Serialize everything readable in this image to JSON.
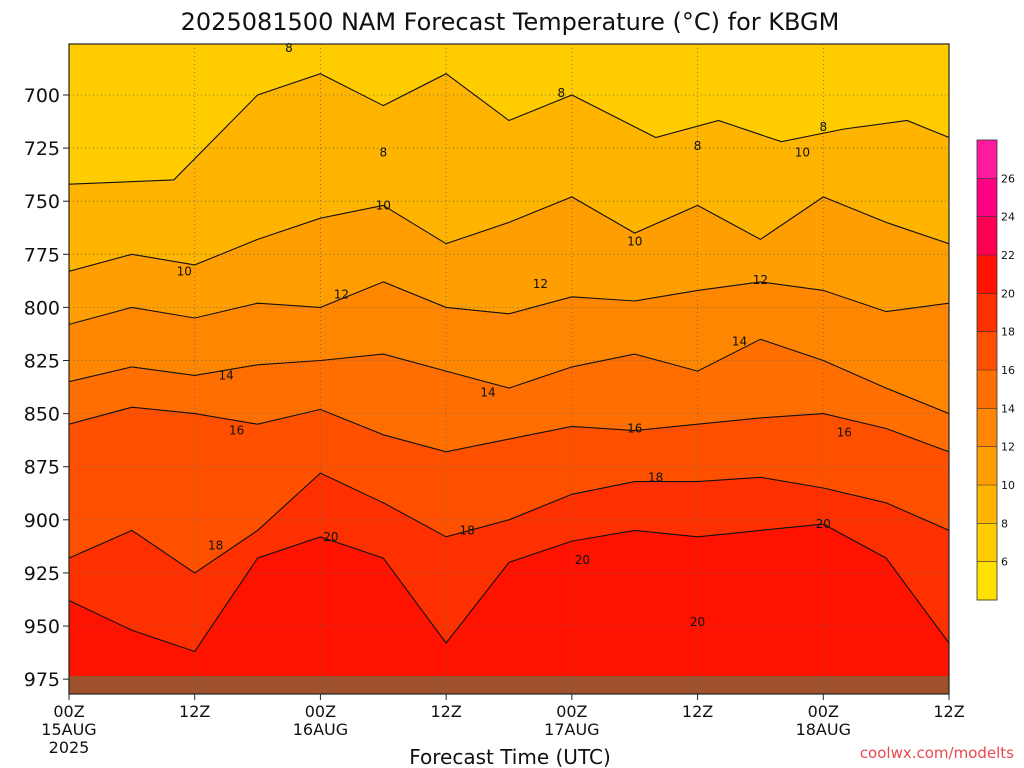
{
  "chart_data": {
    "type": "heatmap",
    "title": "2025081500 NAM Forecast Temperature (°C) for KBGM",
    "xlabel": "Forecast Time (UTC)",
    "ylabel": "",
    "credit": "coolwx.com/modelts",
    "x_ticks": [
      {
        "hour": 0,
        "label": "00Z",
        "sub": "15AUG",
        "sub2": "2025"
      },
      {
        "hour": 12,
        "label": "12Z",
        "sub": "",
        "sub2": ""
      },
      {
        "hour": 24,
        "label": "00Z",
        "sub": "16AUG",
        "sub2": ""
      },
      {
        "hour": 36,
        "label": "12Z",
        "sub": "",
        "sub2": ""
      },
      {
        "hour": 48,
        "label": "00Z",
        "sub": "17AUG",
        "sub2": ""
      },
      {
        "hour": 60,
        "label": "12Z",
        "sub": "",
        "sub2": ""
      },
      {
        "hour": 72,
        "label": "00Z",
        "sub": "18AUG",
        "sub2": ""
      },
      {
        "hour": 84,
        "label": "12Z",
        "sub": "",
        "sub2": ""
      }
    ],
    "xlim": [
      0,
      84
    ],
    "y_ticks": [
      "700",
      "725",
      "750",
      "775",
      "800",
      "825",
      "850",
      "875",
      "900",
      "925",
      "950",
      "975"
    ],
    "ylim_hPa": [
      676,
      982
    ],
    "colorbar": {
      "ticks": [
        "6",
        "8",
        "10",
        "12",
        "14",
        "16",
        "18",
        "20",
        "22",
        "24",
        "26"
      ],
      "range": [
        4,
        28
      ],
      "colors": [
        "#FFE000",
        "#FFCC00",
        "#FFB400",
        "#FF9E00",
        "#FF8600",
        "#FF6E00",
        "#FF5000",
        "#FF3000",
        "#FF1200",
        "#FF0050",
        "#FF0080",
        "#FF1A9E"
      ]
    },
    "isotherms": [
      {
        "value": 8,
        "p": [
          [
            0,
            742
          ],
          [
            10,
            740
          ],
          [
            18,
            700
          ],
          [
            24,
            690
          ],
          [
            30,
            705
          ],
          [
            36,
            690
          ],
          [
            42,
            712
          ],
          [
            48,
            700
          ],
          [
            56,
            720
          ],
          [
            62,
            712
          ],
          [
            68,
            722
          ],
          [
            74,
            716
          ],
          [
            80,
            712
          ],
          [
            84,
            720
          ]
        ],
        "labels": [
          {
            "text": "8",
            "h": 21,
            "p": 678
          },
          {
            "text": "8",
            "h": 30,
            "p": 727
          },
          {
            "text": "8",
            "h": 47,
            "p": 699
          },
          {
            "text": "8",
            "h": 60,
            "p": 724
          },
          {
            "text": "8",
            "h": 72,
            "p": 715
          }
        ]
      },
      {
        "value": 10,
        "p": [
          [
            0,
            783
          ],
          [
            6,
            775
          ],
          [
            12,
            780
          ],
          [
            18,
            768
          ],
          [
            24,
            758
          ],
          [
            30,
            752
          ],
          [
            36,
            770
          ],
          [
            42,
            760
          ],
          [
            48,
            748
          ],
          [
            54,
            765
          ],
          [
            60,
            752
          ],
          [
            66,
            768
          ],
          [
            72,
            748
          ],
          [
            78,
            760
          ],
          [
            84,
            770
          ]
        ],
        "labels": [
          {
            "text": "10",
            "h": 11,
            "p": 783
          },
          {
            "text": "10",
            "h": 30,
            "p": 752
          },
          {
            "text": "10",
            "h": 54,
            "p": 769
          },
          {
            "text": "10",
            "h": 70,
            "p": 727
          }
        ]
      },
      {
        "value": 12,
        "p": [
          [
            0,
            808
          ],
          [
            6,
            800
          ],
          [
            12,
            805
          ],
          [
            18,
            798
          ],
          [
            24,
            800
          ],
          [
            30,
            788
          ],
          [
            36,
            800
          ],
          [
            42,
            803
          ],
          [
            48,
            795
          ],
          [
            54,
            797
          ],
          [
            60,
            792
          ],
          [
            66,
            788
          ],
          [
            72,
            792
          ],
          [
            78,
            802
          ],
          [
            84,
            798
          ]
        ],
        "labels": [
          {
            "text": "12",
            "h": 26,
            "p": 794
          },
          {
            "text": "12",
            "h": 45,
            "p": 789
          },
          {
            "text": "12",
            "h": 66,
            "p": 787
          }
        ]
      },
      {
        "value": 14,
        "p": [
          [
            0,
            835
          ],
          [
            6,
            828
          ],
          [
            12,
            832
          ],
          [
            18,
            827
          ],
          [
            24,
            825
          ],
          [
            30,
            822
          ],
          [
            36,
            830
          ],
          [
            42,
            838
          ],
          [
            48,
            828
          ],
          [
            54,
            822
          ],
          [
            60,
            830
          ],
          [
            66,
            815
          ],
          [
            72,
            825
          ],
          [
            78,
            838
          ],
          [
            84,
            850
          ]
        ],
        "labels": [
          {
            "text": "14",
            "h": 15,
            "p": 832
          },
          {
            "text": "14",
            "h": 40,
            "p": 840
          },
          {
            "text": "14",
            "h": 64,
            "p": 816
          }
        ]
      },
      {
        "value": 16,
        "p": [
          [
            0,
            855
          ],
          [
            6,
            847
          ],
          [
            12,
            850
          ],
          [
            18,
            855
          ],
          [
            24,
            848
          ],
          [
            30,
            860
          ],
          [
            36,
            868
          ],
          [
            42,
            862
          ],
          [
            48,
            856
          ],
          [
            54,
            858
          ],
          [
            60,
            855
          ],
          [
            66,
            852
          ],
          [
            72,
            850
          ],
          [
            78,
            857
          ],
          [
            84,
            868
          ]
        ],
        "labels": [
          {
            "text": "16",
            "h": 16,
            "p": 858
          },
          {
            "text": "16",
            "h": 54,
            "p": 857
          },
          {
            "text": "16",
            "h": 74,
            "p": 859
          }
        ]
      },
      {
        "value": 18,
        "p": [
          [
            0,
            918
          ],
          [
            6,
            905
          ],
          [
            12,
            925
          ],
          [
            18,
            905
          ],
          [
            24,
            878
          ],
          [
            30,
            892
          ],
          [
            36,
            908
          ],
          [
            42,
            900
          ],
          [
            48,
            888
          ],
          [
            54,
            882
          ],
          [
            60,
            882
          ],
          [
            66,
            880
          ],
          [
            72,
            885
          ],
          [
            78,
            892
          ],
          [
            84,
            905
          ]
        ],
        "labels": [
          {
            "text": "18",
            "h": 14,
            "p": 912
          },
          {
            "text": "18",
            "h": 38,
            "p": 905
          },
          {
            "text": "18",
            "h": 56,
            "p": 880
          }
        ]
      },
      {
        "value": 20,
        "p": [
          [
            0,
            938
          ],
          [
            6,
            952
          ],
          [
            12,
            962
          ],
          [
            18,
            918
          ],
          [
            24,
            908
          ],
          [
            30,
            918
          ],
          [
            36,
            958
          ],
          [
            42,
            920
          ],
          [
            48,
            910
          ],
          [
            54,
            905
          ],
          [
            60,
            908
          ],
          [
            66,
            905
          ],
          [
            72,
            902
          ],
          [
            78,
            918
          ],
          [
            84,
            958
          ]
        ],
        "labels": [
          {
            "text": "20",
            "h": 25,
            "p": 908
          },
          {
            "text": "20",
            "h": 49,
            "p": 919
          },
          {
            "text": "20",
            "h": 60,
            "p": 948
          },
          {
            "text": "20",
            "h": 72,
            "p": 902
          }
        ]
      }
    ]
  }
}
